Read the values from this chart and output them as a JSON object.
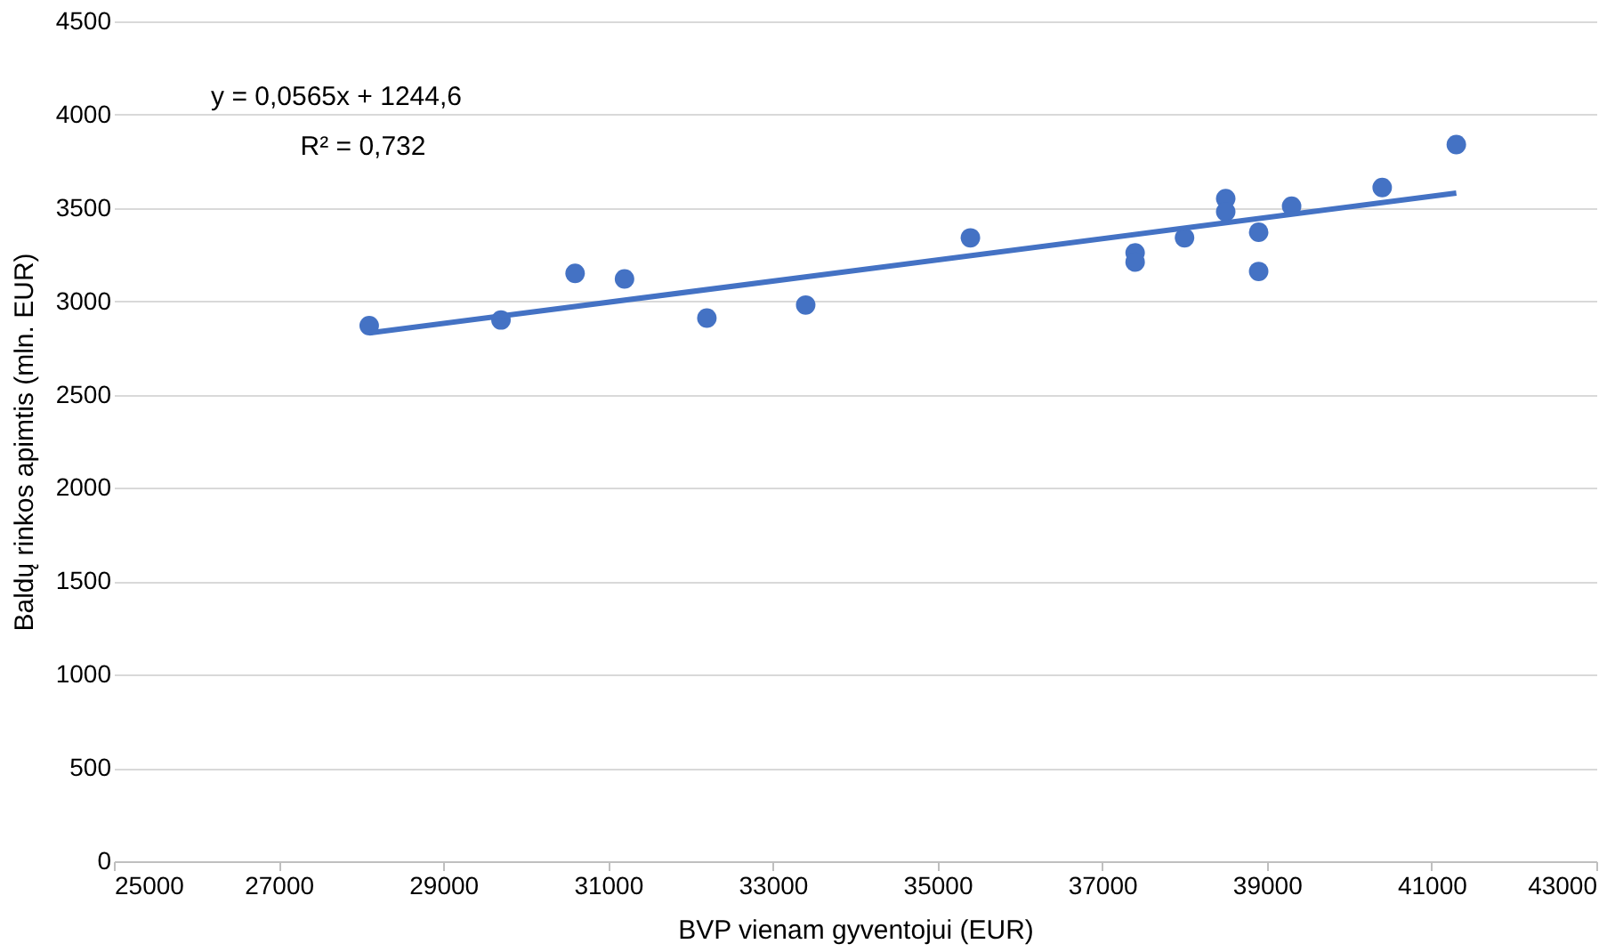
{
  "chart_data": {
    "type": "scatter",
    "xlabel": "BVP vienam gyventojui (EUR)",
    "ylabel": "Baldų rinkos apimtis (mln. EUR)",
    "xlim": [
      25000,
      43000
    ],
    "xticks": [
      25000,
      27000,
      29000,
      31000,
      33000,
      35000,
      37000,
      39000,
      41000,
      43000
    ],
    "ylim": [
      0,
      4500
    ],
    "yticks": [
      0,
      500,
      1000,
      1500,
      2000,
      2500,
      3000,
      3500,
      4000,
      4500
    ],
    "grid": "y",
    "annotations": [
      "y = 0,0565x + 1244,6",
      "R² = 0,732"
    ],
    "series": [
      {
        "color": "#4472c4",
        "marker": "circle",
        "x": [
          28100,
          29700,
          30600,
          31200,
          32200,
          33400,
          35400,
          37400,
          37400,
          38000,
          38500,
          38500,
          38900,
          38900,
          39300,
          40400,
          41300
        ],
        "values": [
          2870,
          2900,
          3150,
          3120,
          2910,
          2980,
          3340,
          3260,
          3210,
          3340,
          3550,
          3480,
          3370,
          3160,
          3510,
          3610,
          3840
        ]
      },
      {
        "type": "line",
        "marker": "none",
        "color": "#4472c4",
        "x": [
          28100,
          41300
        ],
        "values": [
          2830,
          3580
        ]
      }
    ]
  }
}
